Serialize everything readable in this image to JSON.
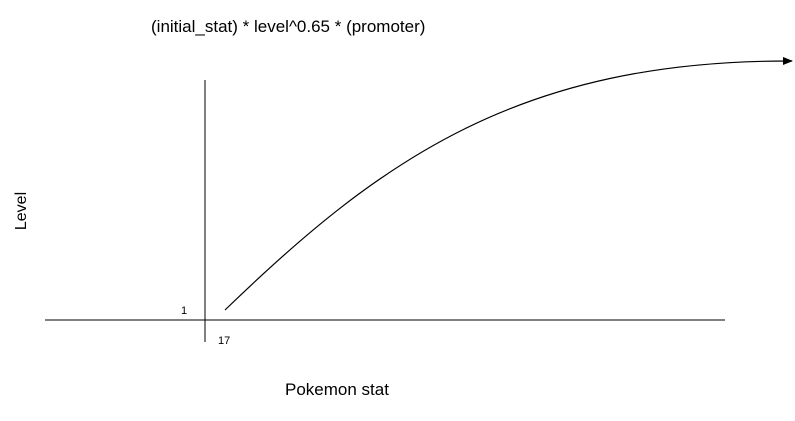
{
  "diagram": {
    "formula": "(initial_stat) * level^0.65 * (promoter)",
    "y_axis_label": "Level",
    "x_axis_label": "Pokemon stat",
    "y_origin_label": "1",
    "x_origin_label": "17"
  }
}
